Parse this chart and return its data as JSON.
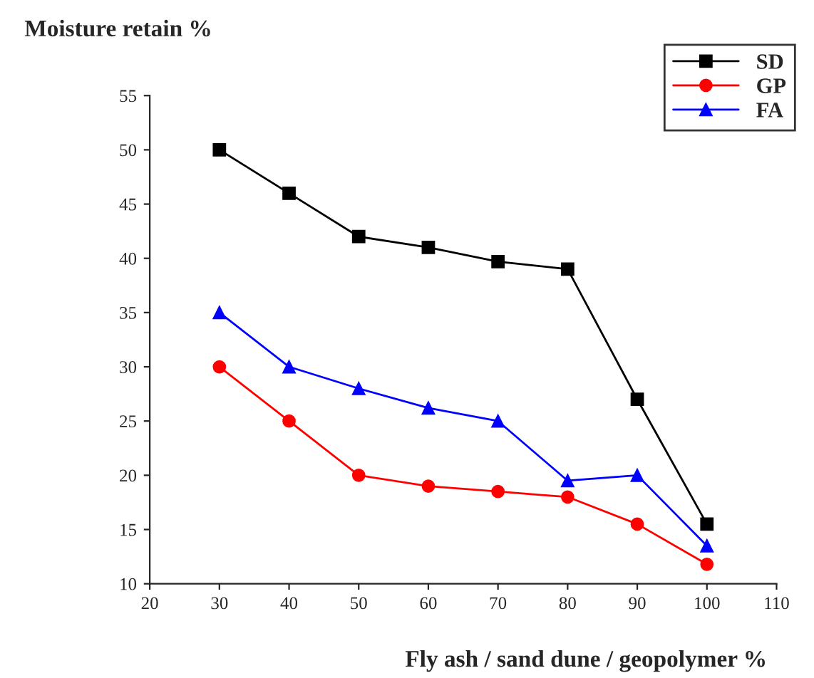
{
  "chart_data": {
    "type": "line",
    "xlabel": "Fly ash / sand dune / geopolymer %",
    "ylabel": "Moisture retain %",
    "x": [
      30,
      40,
      50,
      60,
      70,
      80,
      90,
      100
    ],
    "series": [
      {
        "name": "SD",
        "color": "#000000",
        "marker": "square",
        "values": [
          50,
          46,
          42,
          41,
          39.7,
          39,
          27,
          15.5
        ]
      },
      {
        "name": "GP",
        "color": "#ff0000",
        "marker": "circle",
        "values": [
          30,
          25,
          20,
          19,
          18.5,
          18,
          15.5,
          11.8
        ]
      },
      {
        "name": "FA",
        "color": "#0000ff",
        "marker": "triangle",
        "values": [
          35,
          30,
          28,
          26.2,
          25,
          19.5,
          20,
          13.5
        ]
      }
    ],
    "xlim": [
      20,
      110
    ],
    "xticks": [
      20,
      30,
      40,
      50,
      60,
      70,
      80,
      90,
      100,
      110
    ],
    "ylim": [
      10,
      55
    ],
    "yticks": [
      10,
      15,
      20,
      25,
      30,
      35,
      40,
      45,
      50,
      55
    ],
    "grid": false,
    "legend": "top right",
    "line_style": "solid"
  }
}
